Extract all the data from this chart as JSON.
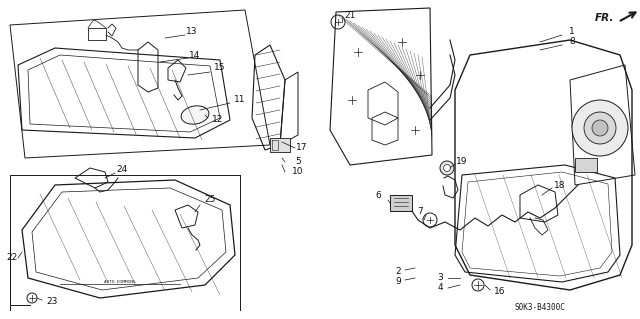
{
  "bg_color": "#ffffff",
  "line_color": "#1a1a1a",
  "fig_width": 6.4,
  "fig_height": 3.19,
  "dpi": 100,
  "diagram_code": "S0K3-B4300C"
}
